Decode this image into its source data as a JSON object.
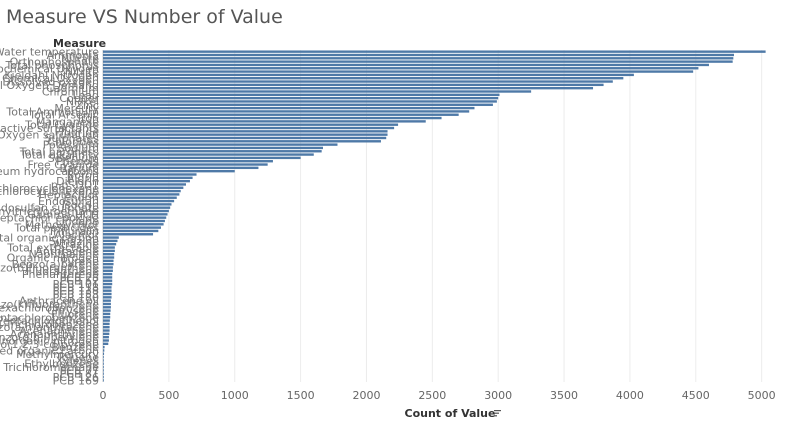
{
  "chart_data": {
    "type": "bar",
    "orientation": "horizontal",
    "title": "Measure VS Number of Value",
    "ylabel": "Measure",
    "xlabel": "Count of Value",
    "sort_icon": "sort-descending-icon",
    "bar_color": "#4e79a7",
    "xlim": [
      0,
      5200
    ],
    "x_ticks": [
      0,
      500,
      1000,
      1500,
      2000,
      2500,
      3000,
      3500,
      4000,
      4500,
      5000
    ],
    "grid": true,
    "categories": [
      "Water temperature",
      "Ammonia",
      "Nitrate",
      "Orthophosphate",
      "Total phosphorus",
      "Biochemical Oxygen",
      "Nitrite",
      "Kjeldahl Nitrogen",
      "Chemical Oxygen",
      "Dissolved oxygen",
      "Chemical Oxygen Demand",
      "Cadmium",
      "Chromium",
      "Lead",
      "Copper",
      "Nickel",
      "Zinc",
      "Mercury",
      "Total Ammonium",
      "Total Arsenic",
      "Iron",
      "Manganese",
      "Total Cyanide",
      "Anionic active surfactants",
      "Fluoride",
      "Oxygen saturation",
      "Sulphates",
      "Chlorides",
      "Potassium",
      "Sodium",
      "Total hardness",
      "Total alkalinity",
      "Selenium",
      "Phenols",
      "Free Cyanide",
      "Barium",
      "Petroleum hydrocarbons",
      "Boron",
      "Aldrin",
      "Dieldrin",
      "p,p'-DDT",
      "beta-Hexachlorocyclohexane",
      "alpha-Hexachlorocyclohexane",
      "Heptachlor",
      "Endrin",
      "Endosulfan",
      "Isodrin",
      "Endosulfan sulphate",
      "Total dichlorodiphenyltrichloroethane",
      "Gamma-HCH",
      "Heptachlor epoxide",
      "Lindane",
      "Methoxychlor",
      "Total pesticides",
      "Trifluralin",
      "Alachlor",
      "Total organic carbon",
      "Simazine",
      "Atrazine",
      "Total extractable",
      "Anthracene",
      "Naphthalene",
      "Organic nitrogen",
      "Pyrene",
      "Benzo(a)pyrene",
      "Benzo(b)fluoranthene",
      "Fluoranthene",
      "Phenanthrene",
      "PCB 28",
      "PCB 52",
      "PCB 101",
      "PCB 118",
      "PCB 138",
      "PCB 153",
      "PCB 180",
      "Anthracene oil",
      "Benzo(k)fluoranthene",
      "Hexachlorobenzene",
      "Chrysene",
      "Fluorene",
      "Pentachlorobenzene",
      "Pentachlorophenol",
      "1,2,4-Trichlorobenzene",
      "Dibenzo(a,h)anthracene",
      "Acenaphthene",
      "Acenaphthylene",
      "Benzo(g,h,i)perylene",
      "Inorganic nitrogen",
      "Indeno(1,2,3-cd)pyrene",
      "Benzene",
      "Dissolved organic carbon",
      "Methylmercury",
      "Toluene",
      "Xylenes",
      "Ethylbenzene",
      "Trichloromethane",
      "PCB 77",
      "PCB 81",
      "PCB 126",
      "PCB 169"
    ],
    "values": [
      5030,
      4790,
      4785,
      4780,
      4600,
      4520,
      4480,
      4030,
      3950,
      3870,
      3800,
      3720,
      3250,
      3010,
      3000,
      2990,
      2960,
      2820,
      2780,
      2700,
      2570,
      2450,
      2240,
      2210,
      2160,
      2160,
      2150,
      2110,
      1780,
      1670,
      1660,
      1600,
      1500,
      1290,
      1250,
      1180,
      1000,
      710,
      680,
      660,
      630,
      610,
      590,
      580,
      560,
      540,
      520,
      510,
      500,
      490,
      480,
      470,
      460,
      440,
      420,
      380,
      120,
      110,
      100,
      90,
      90,
      85,
      85,
      80,
      80,
      75,
      75,
      70,
      70,
      70,
      70,
      65,
      65,
      65,
      65,
      60,
      60,
      60,
      58,
      55,
      55,
      52,
      50,
      50,
      50,
      48,
      45,
      45,
      40,
      12,
      10,
      8,
      6,
      5,
      4,
      3,
      2,
      2,
      1,
      1
    ]
  }
}
